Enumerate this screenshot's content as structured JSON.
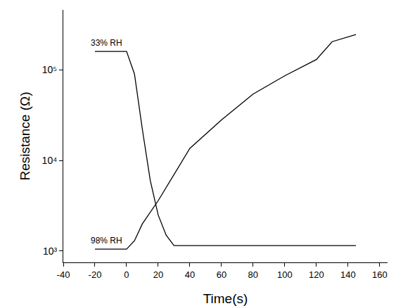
{
  "chart_data": {
    "type": "line",
    "x_label": "Time(s)",
    "y_label": "Resistance (Ω)",
    "log": "y",
    "grid": false,
    "xlim": [
      -40,
      165
    ],
    "xticks": [
      -40,
      -20,
      0,
      20,
      40,
      60,
      80,
      100,
      120,
      140,
      160
    ],
    "ylim": [
      750,
      460000
    ],
    "yticks": [
      {
        "value": 1000,
        "label": "10³"
      },
      {
        "value": 10000,
        "label": "10⁴"
      },
      {
        "value": 100000,
        "label": "10⁵"
      }
    ],
    "series": [
      {
        "name": "33% RH",
        "color": "#000000",
        "line_style": "solid",
        "x": [
          -20,
          -10,
          0,
          5,
          10,
          15,
          20,
          25,
          30,
          40,
          60,
          80,
          100,
          120,
          145
        ],
        "values": [
          160000,
          160000,
          160000,
          90000,
          22000,
          6000,
          2500,
          1500,
          1150,
          1150,
          1150,
          1150,
          1150,
          1150,
          1150
        ]
      },
      {
        "name": "98% RH",
        "color": "#000000",
        "line_style": "solid",
        "x": [
          -20,
          -10,
          0,
          5,
          10,
          20,
          40,
          60,
          80,
          100,
          120,
          130,
          145
        ],
        "values": [
          1050,
          1050,
          1050,
          1300,
          2000,
          3600,
          13600,
          28000,
          54000,
          86000,
          130000,
          205000,
          245000
        ]
      }
    ]
  }
}
